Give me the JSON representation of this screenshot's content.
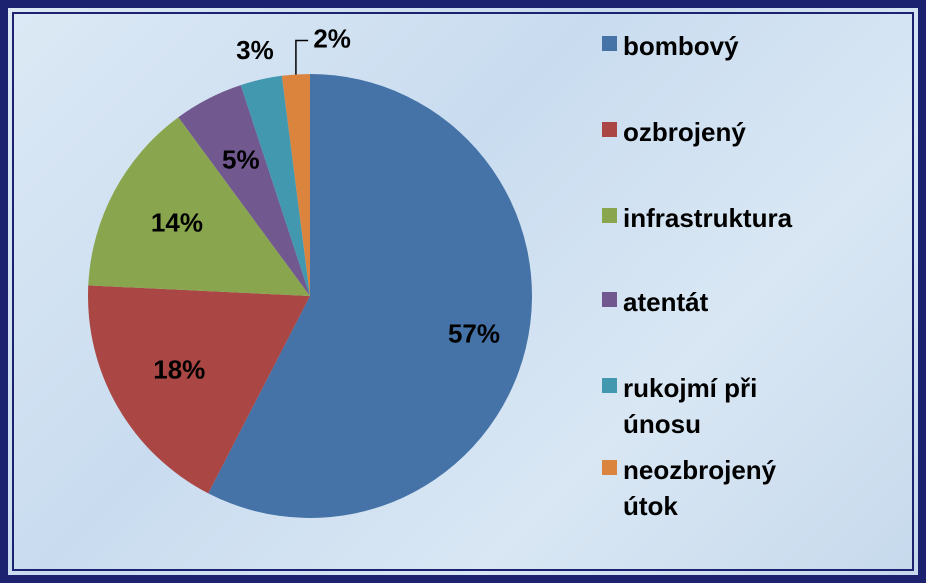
{
  "chart_data": {
    "type": "pie",
    "categories": [
      "bombový",
      "ozbrojený",
      "infrastruktura",
      "atentát",
      "rukojmí při únosu",
      "neozbrojený útok"
    ],
    "values": [
      57,
      18,
      14,
      5,
      3,
      2
    ],
    "value_labels": [
      "57%",
      "18%",
      "14%",
      "5%",
      "3%",
      "2%"
    ],
    "colors": [
      "#4572a7",
      "#aa4643",
      "#89a54e",
      "#71588f",
      "#4198af",
      "#db843d"
    ],
    "legend": "right"
  }
}
